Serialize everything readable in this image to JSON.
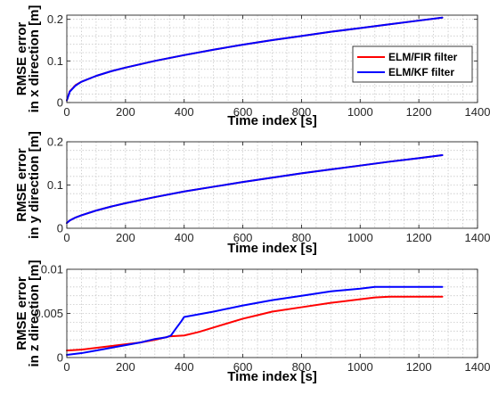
{
  "chart_data": [
    {
      "type": "line",
      "xlabel": "Time index [s]",
      "ylabel": [
        "RMSE error",
        "in x direction [m]"
      ],
      "xlim": [
        0,
        1400
      ],
      "ylim": [
        0,
        0.21
      ],
      "xticks": [
        0,
        200,
        400,
        600,
        800,
        1000,
        1200,
        1400
      ],
      "yticks": [
        0,
        0.1,
        0.2
      ],
      "ytick_labels": [
        "0",
        "0.1",
        "0.2"
      ],
      "grid": true,
      "legend": {
        "placement": "right",
        "entries": [
          "ELM/FIR filter",
          "ELM/KF filter"
        ]
      },
      "series": [
        {
          "name": "ELM/FIR filter",
          "color": "#ff0000",
          "x": [
            0,
            10,
            30,
            50,
            100,
            150,
            200,
            300,
            400,
            500,
            600,
            700,
            800,
            900,
            1000,
            1100,
            1200,
            1280
          ],
          "y": [
            0.005,
            0.027,
            0.042,
            0.05,
            0.064,
            0.075,
            0.084,
            0.1,
            0.114,
            0.127,
            0.139,
            0.15,
            0.16,
            0.17,
            0.179,
            0.188,
            0.197,
            0.204
          ]
        },
        {
          "name": "ELM/KF filter",
          "color": "#0000ff",
          "x": [
            0,
            10,
            30,
            50,
            100,
            150,
            200,
            300,
            400,
            500,
            600,
            700,
            800,
            900,
            1000,
            1100,
            1200,
            1280
          ],
          "y": [
            0.005,
            0.026,
            0.041,
            0.05,
            0.064,
            0.075,
            0.084,
            0.1,
            0.114,
            0.127,
            0.139,
            0.15,
            0.16,
            0.17,
            0.179,
            0.188,
            0.197,
            0.204
          ]
        }
      ]
    },
    {
      "type": "line",
      "xlabel": "Time index [s]",
      "ylabel": [
        "RMSE error",
        "in y direction [m]"
      ],
      "xlim": [
        0,
        1400
      ],
      "ylim": [
        0,
        0.2
      ],
      "xticks": [
        0,
        200,
        400,
        600,
        800,
        1000,
        1200,
        1400
      ],
      "yticks": [
        0,
        0.1,
        0.2
      ],
      "ytick_labels": [
        "0",
        "0.1",
        "0.2"
      ],
      "grid": true,
      "series": [
        {
          "name": "ELM/FIR filter",
          "color": "#ff0000",
          "x": [
            0,
            10,
            30,
            50,
            100,
            150,
            200,
            300,
            400,
            500,
            600,
            700,
            800,
            900,
            1000,
            1100,
            1200,
            1280
          ],
          "y": [
            0.012,
            0.018,
            0.025,
            0.03,
            0.041,
            0.05,
            0.058,
            0.072,
            0.085,
            0.096,
            0.107,
            0.117,
            0.127,
            0.136,
            0.145,
            0.154,
            0.162,
            0.169
          ]
        },
        {
          "name": "ELM/KF filter",
          "color": "#0000ff",
          "x": [
            0,
            10,
            30,
            50,
            100,
            150,
            200,
            300,
            400,
            500,
            600,
            700,
            800,
            900,
            1000,
            1100,
            1200,
            1280
          ],
          "y": [
            0.012,
            0.018,
            0.025,
            0.03,
            0.041,
            0.05,
            0.058,
            0.072,
            0.085,
            0.096,
            0.107,
            0.117,
            0.127,
            0.136,
            0.145,
            0.154,
            0.162,
            0.169
          ]
        }
      ]
    },
    {
      "type": "line",
      "xlabel": "Time index [s]",
      "ylabel": [
        "RMSE error",
        "in z direction [m]"
      ],
      "xlim": [
        0,
        1400
      ],
      "ylim": [
        0,
        0.01
      ],
      "xticks": [
        0,
        200,
        400,
        600,
        800,
        1000,
        1200,
        1400
      ],
      "yticks": [
        0,
        0.005,
        0.01
      ],
      "ytick_labels": [
        "0",
        "0.005",
        "0.01"
      ],
      "grid": true,
      "series": [
        {
          "name": "ELM/FIR filter",
          "color": "#ff0000",
          "x": [
            0,
            50,
            100,
            150,
            200,
            250,
            300,
            350,
            400,
            450,
            500,
            550,
            600,
            650,
            700,
            800,
            900,
            1000,
            1050,
            1100,
            1200,
            1280
          ],
          "y": [
            0.0008,
            0.0009,
            0.0011,
            0.0013,
            0.0015,
            0.0017,
            0.002,
            0.0024,
            0.0025,
            0.0029,
            0.0034,
            0.0039,
            0.0044,
            0.0048,
            0.0052,
            0.0057,
            0.0062,
            0.0066,
            0.0068,
            0.0069,
            0.0069,
            0.0069
          ]
        },
        {
          "name": "ELM/KF filter",
          "color": "#0000ff",
          "x": [
            0,
            50,
            100,
            150,
            200,
            250,
            300,
            340,
            355,
            370,
            390,
            400,
            450,
            500,
            600,
            700,
            800,
            900,
            1000,
            1050,
            1100,
            1200,
            1280
          ],
          "y": [
            0.0003,
            0.0005,
            0.0008,
            0.0011,
            0.0014,
            0.0017,
            0.0021,
            0.0023,
            0.0025,
            0.0032,
            0.0041,
            0.0046,
            0.0049,
            0.0052,
            0.0059,
            0.0065,
            0.007,
            0.0075,
            0.0078,
            0.008,
            0.008,
            0.008,
            0.008
          ]
        }
      ]
    }
  ]
}
